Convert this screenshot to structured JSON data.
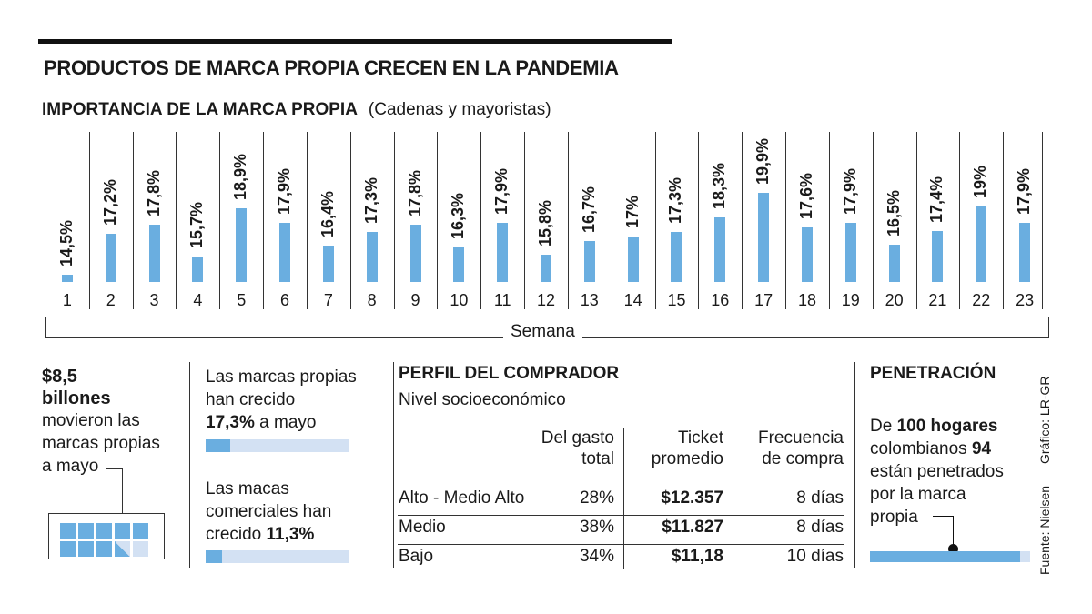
{
  "title": "PRODUCTOS DE MARCA PROPIA CRECEN EN LA PANDEMIA",
  "subtitle": {
    "bold": "IMPORTANCIA DE LA MARCA PROPIA",
    "regular": "(Cadenas y mayoristas)"
  },
  "chart_data": {
    "type": "bar",
    "title": "IMPORTANCIA DE LA MARCA PROPIA (Cadenas y mayoristas)",
    "xlabel": "Semana",
    "ylabel": "",
    "categories": [
      "1",
      "2",
      "3",
      "4",
      "5",
      "6",
      "7",
      "8",
      "9",
      "10",
      "11",
      "12",
      "13",
      "14",
      "15",
      "16",
      "17",
      "18",
      "19",
      "20",
      "21",
      "22",
      "23"
    ],
    "values": [
      14.5,
      17.2,
      17.8,
      15.7,
      18.9,
      17.9,
      16.4,
      17.3,
      17.8,
      16.3,
      17.9,
      15.8,
      16.7,
      17,
      17.3,
      18.3,
      19.9,
      17.6,
      17.9,
      16.5,
      17.4,
      19,
      17.9
    ],
    "labels": [
      "14,5%",
      "17,2%",
      "17,8%",
      "15,7%",
      "18,9%",
      "17,9%",
      "16,4%",
      "17,3%",
      "17,8%",
      "16,3%",
      "17,9%",
      "15,8%",
      "16,7%",
      "17%",
      "17,3%",
      "18,3%",
      "19,9%",
      "17,6%",
      "17,9%",
      "16,5%",
      "17,4%",
      "19%",
      "17,9%"
    ],
    "bar_color": "#6aaee0"
  },
  "money": {
    "amount": "$8,5",
    "unit": "billones",
    "text1": "movieron las",
    "text2": "marcas propias",
    "text3": "a mayo"
  },
  "growth": {
    "a1": "Las marcas propias",
    "a2": "han crecido",
    "a_val": "17,3%",
    "a3": "a mayo",
    "a_pct": 17.3,
    "b1": "Las macas",
    "b2": "comerciales han",
    "b3": "crecido",
    "b_val": "11,3%",
    "b_pct": 11.3
  },
  "profile": {
    "title": "PERFIL DEL COMPRADOR",
    "sub": "Nivel socioeconómico",
    "headers": [
      [
        "Del gasto",
        "total"
      ],
      [
        "Ticket",
        "promedio"
      ],
      [
        "Frecuencia",
        "de compra"
      ]
    ],
    "rows": [
      [
        "Alto - Medio Alto",
        "28%",
        "$12.357",
        "8 días"
      ],
      [
        "Medio",
        "38%",
        "$11.827",
        "8 días"
      ],
      [
        "Bajo",
        "34%",
        "$11,18",
        "10 días"
      ]
    ]
  },
  "penetration": {
    "title": "PENETRACIÓN",
    "l1a": "De",
    "l1b": "100 hogares",
    "l2a": "colombianos",
    "l2b": "94",
    "l3": "están penetrados",
    "l4": "por la marca",
    "l5": "propia",
    "value": 94
  },
  "credits": {
    "source": "Fuente: Nielsen",
    "graphic": "Gráfico: LR-GR"
  }
}
